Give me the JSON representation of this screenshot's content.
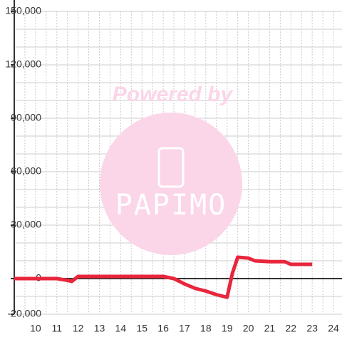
{
  "chart_data": {
    "type": "line",
    "watermark": {
      "top": "Powered by",
      "logo": "PAPIMO"
    },
    "x": [
      9,
      11,
      11.5,
      11.7,
      12,
      16,
      16.5,
      17,
      17.5,
      18,
      18.5,
      19,
      19.25,
      19.5,
      20,
      20.3,
      21,
      21.7,
      22,
      23
    ],
    "series": [
      {
        "color": "#e8263c",
        "values": [
          0,
          0,
          -1000,
          -1600,
          1200,
          1200,
          0,
          -3000,
          -5500,
          -7000,
          -9000,
          -10500,
          3000,
          12000,
          11500,
          10000,
          9500,
          9500,
          8000,
          8000
        ]
      }
    ],
    "xlim": [
      9,
      24.4
    ],
    "xticks": [
      10,
      11,
      12,
      13,
      14,
      15,
      16,
      17,
      18,
      19,
      20,
      21,
      22,
      23,
      24
    ],
    "xminor": [
      9.5,
      10.5,
      11.5,
      12.5,
      13.5,
      14.5,
      15.5,
      16.5,
      17.5,
      18.5,
      19.5,
      20.5,
      21.5,
      22.5,
      23.5
    ],
    "ylim": [
      -20000,
      150000
    ],
    "yticks": [
      {
        "value": -20000,
        "label": "-20,000"
      },
      0,
      {
        "value": 30000,
        "label": "30,000"
      },
      {
        "value": 60000,
        "label": "60,000"
      },
      {
        "value": 90000,
        "label": "90,000"
      },
      {
        "value": 120000,
        "label": "120,000"
      },
      {
        "value": 150000,
        "label": "150,000"
      }
    ],
    "yminor": [
      -10000,
      10000,
      20000,
      40000,
      50000,
      70000,
      80000,
      100000,
      110000,
      130000,
      140000
    ],
    "grid": true
  }
}
